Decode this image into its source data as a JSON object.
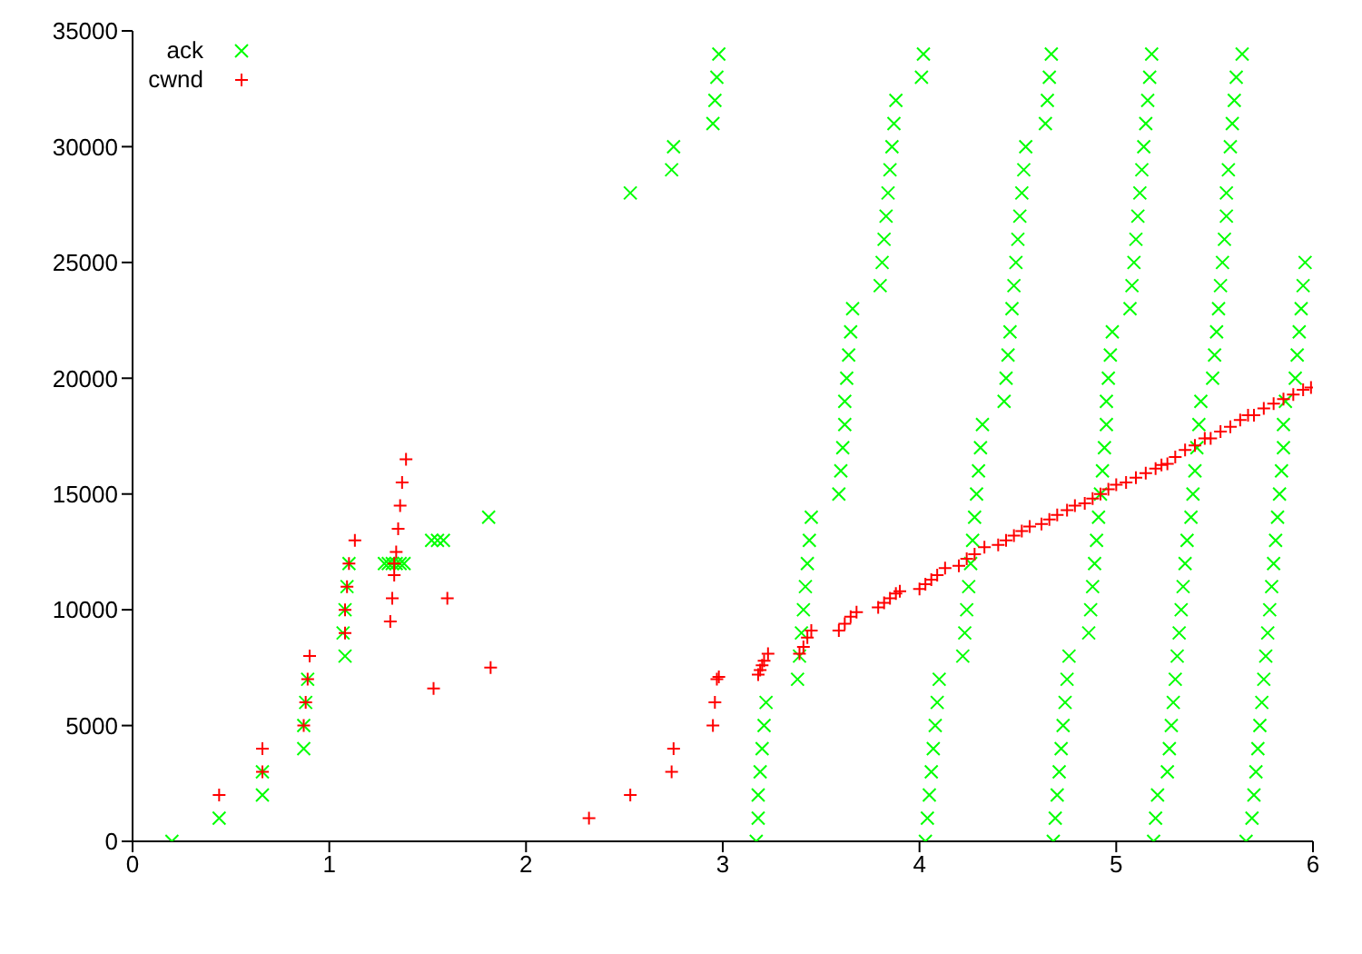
{
  "chart_data": {
    "type": "scatter",
    "xlim": [
      0,
      6
    ],
    "xticks": [
      0,
      1,
      2,
      3,
      4,
      5,
      6
    ],
    "ylim": [
      0,
      35000
    ],
    "yticks": [
      0,
      5000,
      10000,
      15000,
      20000,
      25000,
      30000,
      35000
    ],
    "grid": false,
    "legend": "top left",
    "series": [
      {
        "name": "ack",
        "color": "#00ff00",
        "marker": "cross",
        "x": [
          0.2,
          0.44,
          0.66,
          0.66,
          0.87,
          0.87,
          0.88,
          0.89,
          1.08,
          1.07,
          1.08,
          1.09,
          1.1,
          1.28,
          1.3,
          1.32,
          1.34,
          1.36,
          1.38,
          1.52,
          1.55,
          1.58,
          1.81,
          2.53,
          2.74,
          2.75,
          2.95,
          2.96,
          2.97,
          2.98,
          3.17,
          3.18,
          3.18,
          3.19,
          3.2,
          3.21,
          3.22,
          3.38,
          3.39,
          3.4,
          3.41,
          3.42,
          3.43,
          3.44,
          3.45,
          3.59,
          3.6,
          3.61,
          3.62,
          3.62,
          3.63,
          3.64,
          3.65,
          3.66,
          3.8,
          3.81,
          3.82,
          3.83,
          3.84,
          3.85,
          3.86,
          3.87,
          3.88,
          4.01,
          4.02,
          4.03,
          4.04,
          4.05,
          4.06,
          4.07,
          4.08,
          4.09,
          4.1,
          4.22,
          4.23,
          4.24,
          4.25,
          4.26,
          4.27,
          4.28,
          4.29,
          4.3,
          4.31,
          4.32,
          4.43,
          4.44,
          4.45,
          4.46,
          4.47,
          4.48,
          4.49,
          4.5,
          4.51,
          4.52,
          4.53,
          4.54,
          4.64,
          4.65,
          4.66,
          4.67,
          4.68,
          4.69,
          4.7,
          4.71,
          4.72,
          4.73,
          4.74,
          4.75,
          4.76,
          4.86,
          4.87,
          4.88,
          4.89,
          4.9,
          4.91,
          4.92,
          4.93,
          4.94,
          4.95,
          4.95,
          4.96,
          4.97,
          4.98,
          5.07,
          5.08,
          5.09,
          5.1,
          5.11,
          5.12,
          5.13,
          5.14,
          5.15,
          5.16,
          5.17,
          5.18,
          5.19,
          5.2,
          5.21,
          5.26,
          5.27,
          5.28,
          5.29,
          5.3,
          5.31,
          5.32,
          5.33,
          5.34,
          5.35,
          5.36,
          5.38,
          5.39,
          5.4,
          5.41,
          5.42,
          5.43,
          5.49,
          5.5,
          5.51,
          5.52,
          5.53,
          5.54,
          5.55,
          5.56,
          5.56,
          5.57,
          5.58,
          5.59,
          5.6,
          5.61,
          5.64,
          5.66,
          5.69,
          5.7,
          5.71,
          5.72,
          5.73,
          5.74,
          5.75,
          5.76,
          5.77,
          5.78,
          5.79,
          5.8,
          5.81,
          5.82,
          5.83,
          5.84,
          5.85,
          5.85,
          5.86,
          5.91,
          5.92,
          5.93,
          5.94,
          5.95,
          5.96
        ],
        "values": [
          0,
          1000,
          2000,
          3000,
          4000,
          5000,
          6000,
          7000,
          8000,
          9000,
          10000,
          11000,
          12000,
          12000,
          12000,
          12000,
          12000,
          12000,
          12000,
          13000,
          13000,
          13000,
          14000,
          28000,
          29000,
          30000,
          31000,
          32000,
          33000,
          34000,
          0,
          1000,
          2000,
          3000,
          4000,
          5000,
          6000,
          7000,
          8000,
          9000,
          10000,
          11000,
          12000,
          13000,
          14000,
          15000,
          16000,
          17000,
          18000,
          19000,
          20000,
          21000,
          22000,
          23000,
          24000,
          25000,
          26000,
          27000,
          28000,
          29000,
          30000,
          31000,
          32000,
          33000,
          34000,
          0,
          1000,
          2000,
          3000,
          4000,
          5000,
          6000,
          7000,
          8000,
          9000,
          10000,
          11000,
          12000,
          13000,
          14000,
          15000,
          16000,
          17000,
          18000,
          19000,
          20000,
          21000,
          22000,
          23000,
          24000,
          25000,
          26000,
          27000,
          28000,
          29000,
          30000,
          31000,
          32000,
          33000,
          34000,
          0,
          1000,
          2000,
          3000,
          4000,
          5000,
          6000,
          7000,
          8000,
          9000,
          10000,
          11000,
          12000,
          13000,
          14000,
          15000,
          16000,
          17000,
          18000,
          19000,
          20000,
          21000,
          22000,
          23000,
          24000,
          25000,
          26000,
          27000,
          28000,
          29000,
          30000,
          31000,
          32000,
          33000,
          34000,
          0,
          1000,
          2000,
          3000,
          4000,
          5000,
          6000,
          7000,
          8000,
          9000,
          10000,
          11000,
          12000,
          13000,
          14000,
          15000,
          16000,
          17000,
          18000,
          19000,
          20000,
          21000,
          22000,
          23000,
          24000,
          25000,
          26000,
          27000,
          28000,
          29000,
          30000,
          31000,
          32000,
          33000,
          34000,
          0,
          1000,
          2000,
          3000,
          4000,
          5000,
          6000,
          7000,
          8000,
          9000,
          10000,
          11000,
          12000,
          13000,
          14000,
          15000,
          16000,
          17000,
          18000,
          19000,
          20000,
          21000,
          22000,
          23000,
          24000,
          25000
        ]
      },
      {
        "name": "cwnd",
        "color": "#ff0000",
        "marker": "plus",
        "x": [
          0.44,
          0.66,
          0.66,
          0.87,
          0.88,
          0.89,
          0.9,
          1.08,
          1.08,
          1.09,
          1.1,
          1.13,
          1.31,
          1.32,
          1.33,
          1.33,
          1.34,
          1.35,
          1.36,
          1.37,
          1.39,
          1.6,
          1.53,
          1.82,
          2.32,
          2.53,
          2.74,
          2.75,
          2.95,
          2.96,
          2.97,
          2.98,
          3.18,
          3.19,
          3.2,
          3.21,
          3.23,
          3.39,
          3.41,
          3.43,
          3.45,
          3.59,
          3.62,
          3.65,
          3.68,
          3.79,
          3.82,
          3.85,
          3.88,
          3.9,
          4.0,
          4.03,
          4.06,
          4.09,
          4.13,
          4.2,
          4.24,
          4.28,
          4.33,
          4.4,
          4.44,
          4.48,
          4.52,
          4.56,
          4.62,
          4.66,
          4.7,
          4.75,
          4.79,
          4.84,
          4.88,
          4.92,
          4.96,
          5.0,
          5.05,
          5.1,
          5.15,
          5.2,
          5.23,
          5.26,
          5.3,
          5.35,
          5.4,
          5.45,
          5.48,
          5.53,
          5.58,
          5.63,
          5.67,
          5.7,
          5.75,
          5.8,
          5.85,
          5.9,
          5.95,
          5.99
        ],
        "values": [
          2000,
          3000,
          4000,
          5000,
          6000,
          7000,
          8000,
          9000,
          10000,
          11000,
          12000,
          13000,
          9500,
          10500,
          11500,
          12000,
          12500,
          13500,
          14500,
          15500,
          16500,
          10500,
          6600,
          7500,
          1000,
          2000,
          3000,
          4000,
          5000,
          6000,
          7000,
          7100,
          7200,
          7400,
          7600,
          7800,
          8100,
          8100,
          8400,
          8800,
          9100,
          9100,
          9400,
          9700,
          9900,
          10100,
          10300,
          10500,
          10700,
          10800,
          10900,
          11100,
          11300,
          11500,
          11800,
          11900,
          12200,
          12400,
          12700,
          12800,
          13000,
          13200,
          13400,
          13600,
          13700,
          13900,
          14100,
          14300,
          14500,
          14600,
          14800,
          15000,
          15200,
          15400,
          15500,
          15700,
          15900,
          16100,
          16250,
          16300,
          16600,
          16900,
          17100,
          17400,
          17400,
          17700,
          17900,
          18200,
          18400,
          18400,
          18700,
          18900,
          19100,
          19300,
          19500,
          19600
        ]
      }
    ]
  }
}
